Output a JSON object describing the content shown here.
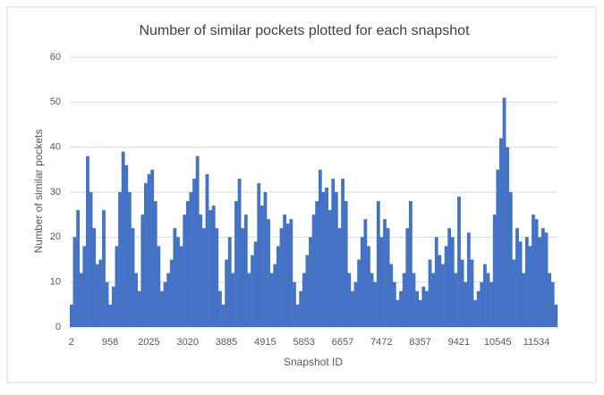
{
  "chart_data": {
    "type": "bar",
    "title": "Number of similar pockets plotted for each snapshot",
    "x_label": "Snapshot ID",
    "y_label": "Number of similar pockets",
    "color": "#4472c4",
    "grid": true,
    "ylim": [
      0,
      60
    ],
    "yticks": [
      0,
      10,
      20,
      30,
      40,
      50,
      60
    ],
    "categories": [
      "2",
      null,
      null,
      null,
      null,
      null,
      null,
      null,
      null,
      null,
      null,
      null,
      "958",
      null,
      null,
      null,
      null,
      null,
      null,
      null,
      null,
      null,
      null,
      null,
      "2025",
      null,
      null,
      null,
      null,
      null,
      null,
      null,
      null,
      null,
      null,
      null,
      "3020",
      null,
      null,
      null,
      null,
      null,
      null,
      null,
      null,
      null,
      null,
      null,
      "3885",
      null,
      null,
      null,
      null,
      null,
      null,
      null,
      null,
      null,
      null,
      null,
      "4915",
      null,
      null,
      null,
      null,
      null,
      null,
      null,
      null,
      null,
      null,
      null,
      "5853",
      null,
      null,
      null,
      null,
      null,
      null,
      null,
      null,
      null,
      null,
      null,
      "6657",
      null,
      null,
      null,
      null,
      null,
      null,
      null,
      null,
      null,
      null,
      null,
      "7472",
      null,
      null,
      null,
      null,
      null,
      null,
      null,
      null,
      null,
      null,
      null,
      "8357",
      null,
      null,
      null,
      null,
      null,
      null,
      null,
      null,
      null,
      null,
      null,
      "9421",
      null,
      null,
      null,
      null,
      null,
      null,
      null,
      null,
      null,
      null,
      null,
      "10545",
      null,
      null,
      null,
      null,
      null,
      null,
      null,
      null,
      null,
      null,
      null,
      "11534",
      null,
      null,
      null,
      null,
      null,
      null
    ],
    "values": [
      5,
      20,
      26,
      12,
      18,
      38,
      30,
      22,
      14,
      15,
      26,
      10,
      5,
      9,
      18,
      30,
      39,
      36,
      30,
      22,
      12,
      8,
      25,
      32,
      34,
      35,
      28,
      18,
      8,
      10,
      12,
      15,
      22,
      20,
      18,
      25,
      28,
      30,
      33,
      38,
      25,
      22,
      34,
      26,
      27,
      22,
      8,
      5,
      15,
      20,
      12,
      28,
      33,
      22,
      25,
      12,
      16,
      19,
      32,
      27,
      30,
      24,
      12,
      14,
      18,
      22,
      25,
      23,
      24,
      10,
      5,
      8,
      12,
      16,
      20,
      25,
      28,
      35,
      30,
      31,
      26,
      33,
      30,
      22,
      33,
      28,
      12,
      8,
      10,
      15,
      20,
      24,
      18,
      12,
      10,
      28,
      20,
      24,
      22,
      14,
      10,
      6,
      8,
      12,
      22,
      28,
      12,
      8,
      6,
      9,
      8,
      15,
      12,
      20,
      16,
      14,
      18,
      22,
      20,
      12,
      29,
      15,
      10,
      21,
      15,
      6,
      8,
      10,
      14,
      12,
      10,
      25,
      35,
      42,
      51,
      40,
      30,
      15,
      22,
      19,
      12,
      20,
      18,
      25,
      24,
      20,
      22,
      21,
      12,
      10,
      5
    ]
  }
}
